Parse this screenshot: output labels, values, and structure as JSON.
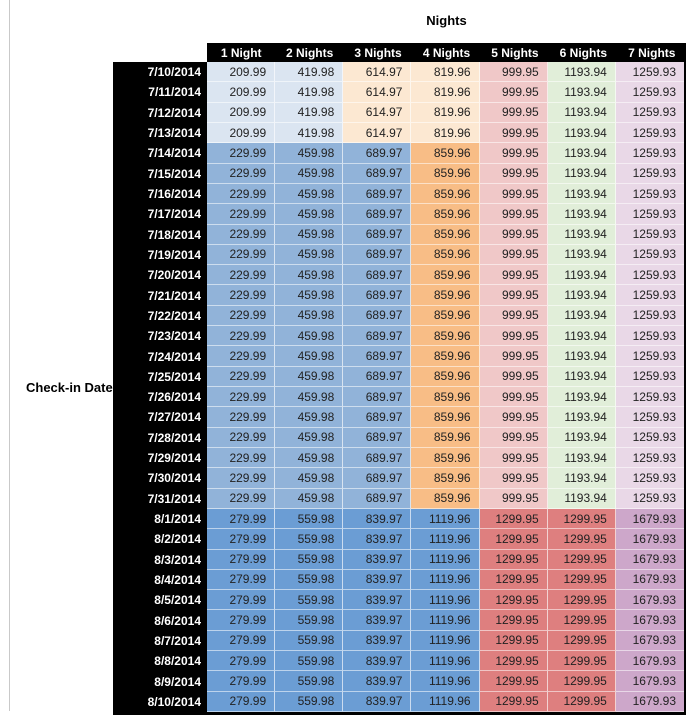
{
  "title": "Nights",
  "row_axis_label": "Check-in Date",
  "colors": {
    "header_bg": "#000000",
    "header_text": "#ffffff",
    "date_col_bg": "#000000",
    "date_col_text": "#ffffff",
    "value_text": "#222222",
    "period_cell_colors": {
      "A": [
        "#dbe5f1",
        "#dbe5f1",
        "#fce8d2",
        "#fce8d2",
        "#f0c8c8",
        "#e1eed9",
        "#e9d8e7"
      ],
      "B": [
        "#91b3d9",
        "#91b3d9",
        "#91b3d9",
        "#f8bd86",
        "#f0c8c8",
        "#e1eed9",
        "#e9d8e7"
      ],
      "C": [
        "#6b9dd4",
        "#6b9dd4",
        "#6b9dd4",
        "#6b9dd4",
        "#de7f7f",
        "#de7f7f",
        "#cda7ca"
      ]
    }
  },
  "chart_data": {
    "type": "table",
    "title": "Nights",
    "row_label": "Check-in Date",
    "columns": [
      "1 Night",
      "2 Nights",
      "3 Nights",
      "4 Nights",
      "5 Nights",
      "6 Nights",
      "7 Nights"
    ],
    "rows": [
      {
        "date": "7/10/2014",
        "period": "A",
        "values": [
          "209.99",
          "419.98",
          "614.97",
          "819.96",
          "999.95",
          "1193.94",
          "1259.93"
        ]
      },
      {
        "date": "7/11/2014",
        "period": "A",
        "values": [
          "209.99",
          "419.98",
          "614.97",
          "819.96",
          "999.95",
          "1193.94",
          "1259.93"
        ]
      },
      {
        "date": "7/12/2014",
        "period": "A",
        "values": [
          "209.99",
          "419.98",
          "614.97",
          "819.96",
          "999.95",
          "1193.94",
          "1259.93"
        ]
      },
      {
        "date": "7/13/2014",
        "period": "A",
        "values": [
          "209.99",
          "419.98",
          "614.97",
          "819.96",
          "999.95",
          "1193.94",
          "1259.93"
        ]
      },
      {
        "date": "7/14/2014",
        "period": "B",
        "values": [
          "229.99",
          "459.98",
          "689.97",
          "859.96",
          "999.95",
          "1193.94",
          "1259.93"
        ]
      },
      {
        "date": "7/15/2014",
        "period": "B",
        "values": [
          "229.99",
          "459.98",
          "689.97",
          "859.96",
          "999.95",
          "1193.94",
          "1259.93"
        ]
      },
      {
        "date": "7/16/2014",
        "period": "B",
        "values": [
          "229.99",
          "459.98",
          "689.97",
          "859.96",
          "999.95",
          "1193.94",
          "1259.93"
        ]
      },
      {
        "date": "7/17/2014",
        "period": "B",
        "values": [
          "229.99",
          "459.98",
          "689.97",
          "859.96",
          "999.95",
          "1193.94",
          "1259.93"
        ]
      },
      {
        "date": "7/18/2014",
        "period": "B",
        "values": [
          "229.99",
          "459.98",
          "689.97",
          "859.96",
          "999.95",
          "1193.94",
          "1259.93"
        ]
      },
      {
        "date": "7/19/2014",
        "period": "B",
        "values": [
          "229.99",
          "459.98",
          "689.97",
          "859.96",
          "999.95",
          "1193.94",
          "1259.93"
        ]
      },
      {
        "date": "7/20/2014",
        "period": "B",
        "values": [
          "229.99",
          "459.98",
          "689.97",
          "859.96",
          "999.95",
          "1193.94",
          "1259.93"
        ]
      },
      {
        "date": "7/21/2014",
        "period": "B",
        "values": [
          "229.99",
          "459.98",
          "689.97",
          "859.96",
          "999.95",
          "1193.94",
          "1259.93"
        ]
      },
      {
        "date": "7/22/2014",
        "period": "B",
        "values": [
          "229.99",
          "459.98",
          "689.97",
          "859.96",
          "999.95",
          "1193.94",
          "1259.93"
        ]
      },
      {
        "date": "7/23/2014",
        "period": "B",
        "values": [
          "229.99",
          "459.98",
          "689.97",
          "859.96",
          "999.95",
          "1193.94",
          "1259.93"
        ]
      },
      {
        "date": "7/24/2014",
        "period": "B",
        "values": [
          "229.99",
          "459.98",
          "689.97",
          "859.96",
          "999.95",
          "1193.94",
          "1259.93"
        ]
      },
      {
        "date": "7/25/2014",
        "period": "B",
        "values": [
          "229.99",
          "459.98",
          "689.97",
          "859.96",
          "999.95",
          "1193.94",
          "1259.93"
        ]
      },
      {
        "date": "7/26/2014",
        "period": "B",
        "values": [
          "229.99",
          "459.98",
          "689.97",
          "859.96",
          "999.95",
          "1193.94",
          "1259.93"
        ]
      },
      {
        "date": "7/27/2014",
        "period": "B",
        "values": [
          "229.99",
          "459.98",
          "689.97",
          "859.96",
          "999.95",
          "1193.94",
          "1259.93"
        ]
      },
      {
        "date": "7/28/2014",
        "period": "B",
        "values": [
          "229.99",
          "459.98",
          "689.97",
          "859.96",
          "999.95",
          "1193.94",
          "1259.93"
        ]
      },
      {
        "date": "7/29/2014",
        "period": "B",
        "values": [
          "229.99",
          "459.98",
          "689.97",
          "859.96",
          "999.95",
          "1193.94",
          "1259.93"
        ]
      },
      {
        "date": "7/30/2014",
        "period": "B",
        "values": [
          "229.99",
          "459.98",
          "689.97",
          "859.96",
          "999.95",
          "1193.94",
          "1259.93"
        ]
      },
      {
        "date": "7/31/2014",
        "period": "B",
        "values": [
          "229.99",
          "459.98",
          "689.97",
          "859.96",
          "999.95",
          "1193.94",
          "1259.93"
        ]
      },
      {
        "date": "8/1/2014",
        "period": "C",
        "values": [
          "279.99",
          "559.98",
          "839.97",
          "1119.96",
          "1299.95",
          "1299.95",
          "1679.93"
        ]
      },
      {
        "date": "8/2/2014",
        "period": "C",
        "values": [
          "279.99",
          "559.98",
          "839.97",
          "1119.96",
          "1299.95",
          "1299.95",
          "1679.93"
        ]
      },
      {
        "date": "8/3/2014",
        "period": "C",
        "values": [
          "279.99",
          "559.98",
          "839.97",
          "1119.96",
          "1299.95",
          "1299.95",
          "1679.93"
        ]
      },
      {
        "date": "8/4/2014",
        "period": "C",
        "values": [
          "279.99",
          "559.98",
          "839.97",
          "1119.96",
          "1299.95",
          "1299.95",
          "1679.93"
        ]
      },
      {
        "date": "8/5/2014",
        "period": "C",
        "values": [
          "279.99",
          "559.98",
          "839.97",
          "1119.96",
          "1299.95",
          "1299.95",
          "1679.93"
        ]
      },
      {
        "date": "8/6/2014",
        "period": "C",
        "values": [
          "279.99",
          "559.98",
          "839.97",
          "1119.96",
          "1299.95",
          "1299.95",
          "1679.93"
        ]
      },
      {
        "date": "8/7/2014",
        "period": "C",
        "values": [
          "279.99",
          "559.98",
          "839.97",
          "1119.96",
          "1299.95",
          "1299.95",
          "1679.93"
        ]
      },
      {
        "date": "8/8/2014",
        "period": "C",
        "values": [
          "279.99",
          "559.98",
          "839.97",
          "1119.96",
          "1299.95",
          "1299.95",
          "1679.93"
        ]
      },
      {
        "date": "8/9/2014",
        "period": "C",
        "values": [
          "279.99",
          "559.98",
          "839.97",
          "1119.96",
          "1299.95",
          "1299.95",
          "1679.93"
        ]
      },
      {
        "date": "8/10/2014",
        "period": "C",
        "values": [
          "279.99",
          "559.98",
          "839.97",
          "1119.96",
          "1299.95",
          "1299.95",
          "1679.93"
        ]
      }
    ]
  }
}
